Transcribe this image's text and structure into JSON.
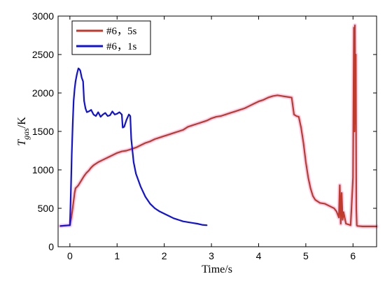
{
  "chart_data": {
    "type": "line",
    "xlabel": "Time/s",
    "ylabel": {
      "symbol": "T",
      "subscript": "gas",
      "unit": "/K"
    },
    "xlim": [
      -0.25,
      6.5
    ],
    "ylim": [
      0,
      3000
    ],
    "xticks": [
      0,
      1,
      2,
      3,
      4,
      5,
      6
    ],
    "yticks": [
      0,
      500,
      1000,
      1500,
      2000,
      2500,
      3000
    ],
    "grid": false,
    "legend": "top-left",
    "series": [
      {
        "name": "#6，5s",
        "color": "#c0392b",
        "halo": "#f6c6e6",
        "x": [
          -0.2,
          0.0,
          0.03,
          0.05,
          0.08,
          0.1,
          0.12,
          0.15,
          0.18,
          0.2,
          0.22,
          0.25,
          0.3,
          0.35,
          0.4,
          0.45,
          0.5,
          0.6,
          0.7,
          0.8,
          0.9,
          1.0,
          1.1,
          1.2,
          1.3,
          1.4,
          1.5,
          1.6,
          1.7,
          1.8,
          1.9,
          2.0,
          2.1,
          2.2,
          2.3,
          2.4,
          2.5,
          2.6,
          2.7,
          2.8,
          2.9,
          3.0,
          3.1,
          3.2,
          3.3,
          3.4,
          3.5,
          3.6,
          3.7,
          3.8,
          3.9,
          4.0,
          4.1,
          4.2,
          4.3,
          4.4,
          4.5,
          4.6,
          4.7,
          4.75,
          4.8,
          4.85,
          4.9,
          4.95,
          5.0,
          5.05,
          5.1,
          5.15,
          5.2,
          5.3,
          5.4,
          5.5,
          5.6,
          5.65,
          5.7,
          5.72,
          5.74,
          5.76,
          5.78,
          5.8,
          5.85,
          5.9,
          5.95,
          6.0,
          6.02,
          6.03,
          6.04,
          6.05,
          6.06,
          6.07,
          6.08,
          6.09,
          6.1,
          6.2,
          6.3,
          6.4,
          6.5
        ],
        "y": [
          270,
          280,
          380,
          460,
          600,
          700,
          760,
          780,
          800,
          820,
          840,
          870,
          920,
          960,
          990,
          1030,
          1060,
          1100,
          1130,
          1160,
          1190,
          1220,
          1240,
          1250,
          1270,
          1290,
          1320,
          1350,
          1370,
          1400,
          1420,
          1440,
          1460,
          1480,
          1500,
          1520,
          1560,
          1580,
          1600,
          1620,
          1640,
          1670,
          1690,
          1700,
          1720,
          1740,
          1760,
          1780,
          1800,
          1830,
          1860,
          1890,
          1910,
          1940,
          1960,
          1970,
          1960,
          1950,
          1940,
          1720,
          1700,
          1690,
          1550,
          1350,
          1100,
          900,
          760,
          660,
          610,
          570,
          560,
          530,
          500,
          460,
          380,
          800,
          300,
          700,
          350,
          450,
          300,
          290,
          280,
          900,
          2850,
          1500,
          2880,
          1600,
          2500,
          500,
          280,
          270,
          270,
          265,
          265,
          265,
          265
        ]
      },
      {
        "name": "#6，1s",
        "color": "#1010e0",
        "x": [
          -0.2,
          0.0,
          0.02,
          0.04,
          0.06,
          0.08,
          0.1,
          0.12,
          0.15,
          0.18,
          0.2,
          0.22,
          0.25,
          0.28,
          0.3,
          0.33,
          0.36,
          0.4,
          0.45,
          0.5,
          0.55,
          0.6,
          0.65,
          0.7,
          0.75,
          0.8,
          0.85,
          0.9,
          0.95,
          1.0,
          1.05,
          1.1,
          1.12,
          1.15,
          1.2,
          1.25,
          1.28,
          1.3,
          1.35,
          1.4,
          1.5,
          1.6,
          1.7,
          1.8,
          1.9,
          2.0,
          2.1,
          2.2,
          2.3,
          2.4,
          2.5,
          2.6,
          2.7,
          2.8,
          2.9
        ],
        "y": [
          270,
          280,
          700,
          1200,
          1600,
          1900,
          2050,
          2150,
          2250,
          2320,
          2310,
          2290,
          2200,
          2150,
          1900,
          1800,
          1750,
          1760,
          1780,
          1720,
          1700,
          1750,
          1690,
          1720,
          1740,
          1700,
          1710,
          1760,
          1720,
          1730,
          1750,
          1720,
          1550,
          1560,
          1650,
          1720,
          1700,
          1400,
          1100,
          950,
          780,
          650,
          560,
          500,
          460,
          430,
          400,
          370,
          350,
          330,
          320,
          310,
          300,
          285,
          280
        ]
      }
    ]
  }
}
